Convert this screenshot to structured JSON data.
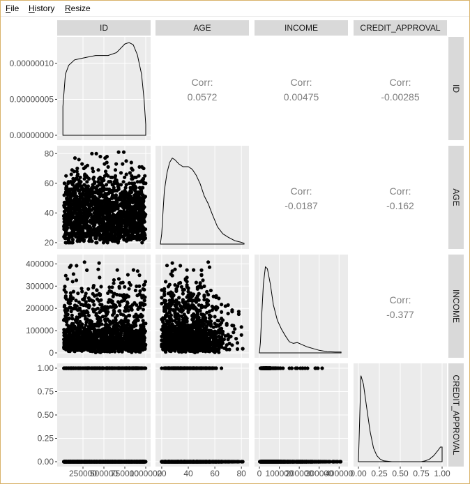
{
  "menu": {
    "file_underline": "F",
    "file_rest": "ile",
    "history_underline": "H",
    "history_rest": "istory",
    "resize_underline": "R",
    "resize_rest": "esize"
  },
  "colors": {
    "panel_bg": "#ebebeb",
    "strip_bg": "#d9d9d9",
    "grid": "#ffffff",
    "points": "#000000",
    "corr_text": "#7f7f7f",
    "axis_text": "#4d4d4d"
  },
  "chart_data": {
    "type": "scatter",
    "subtype": "pairs-matrix",
    "variables": [
      "ID",
      "AGE",
      "INCOME",
      "CREDIT_APPROVAL"
    ],
    "correlations": [
      {
        "row": "ID",
        "col": "AGE",
        "label": "Corr:",
        "value": "0.0572"
      },
      {
        "row": "ID",
        "col": "INCOME",
        "label": "Corr:",
        "value": "0.00475"
      },
      {
        "row": "ID",
        "col": "CREDIT_APPROVAL",
        "label": "Corr:",
        "value": "-0.00285"
      },
      {
        "row": "AGE",
        "col": "INCOME",
        "label": "Corr:",
        "value": "-0.0187"
      },
      {
        "row": "AGE",
        "col": "CREDIT_APPROVAL",
        "label": "Corr:",
        "value": "-0.162"
      },
      {
        "row": "INCOME",
        "col": "CREDIT_APPROVAL",
        "label": "Corr:",
        "value": "-0.377"
      }
    ],
    "ranges": {
      "ID": [
        0,
        1000000
      ],
      "AGE": [
        19,
        82
      ],
      "INCOME": [
        0,
        420000
      ],
      "CREDIT_APPROVAL": [
        0,
        1
      ]
    },
    "density_ylim": [
      0,
      1.3e-07
    ],
    "y_tick_labels": {
      "ID": [
        "0.00000000",
        "0.00000005",
        "0.00000010"
      ],
      "AGE": [
        "20",
        "40",
        "60",
        "80"
      ],
      "INCOME": [
        "0",
        "100000",
        "200000",
        "300000",
        "400000"
      ],
      "CREDIT_APPROVAL": [
        "0.00",
        "0.25",
        "0.50",
        "0.75",
        "1.00"
      ]
    },
    "x_tick_labels": {
      "ID": [
        "250000",
        "500000",
        "750000",
        "1000000"
      ],
      "AGE": [
        "20",
        "40",
        "60",
        "80"
      ],
      "INCOME": [
        "0",
        "100000",
        "200000",
        "300000",
        "400000"
      ],
      "CREDIT_APPROVAL": [
        "0.00",
        "0.25",
        "0.50",
        "0.75",
        "1.00"
      ]
    },
    "densities": {
      "ID": {
        "x": [
          10000,
          40000,
          80000,
          150000,
          250000,
          400000,
          550000,
          650000,
          700000,
          750000,
          800000,
          850000,
          900000,
          950000,
          980000,
          1000000
        ],
        "y": [
          4e-08,
          8.5e-08,
          9.75e-08,
          1.05e-07,
          1.075e-07,
          1.11e-07,
          1.11e-07,
          1.15e-07,
          1.21e-07,
          1.27e-07,
          1.29e-07,
          1.26e-07,
          1.12e-07,
          8.5e-08,
          5e-08,
          1.5e-08
        ]
      },
      "AGE": {
        "x": [
          19,
          20,
          21,
          22,
          24,
          26,
          28,
          30,
          33,
          36,
          40,
          43,
          46,
          49,
          52,
          55,
          58,
          62,
          66,
          70,
          75,
          80,
          82
        ],
        "y": [
          0.0,
          0.12,
          0.38,
          0.62,
          0.83,
          0.95,
          1.0,
          0.98,
          0.93,
          0.9,
          0.9,
          0.87,
          0.8,
          0.7,
          0.56,
          0.47,
          0.35,
          0.2,
          0.12,
          0.08,
          0.04,
          0.02,
          0.01
        ]
      },
      "INCOME": {
        "x": [
          0,
          5000,
          12000,
          20000,
          30000,
          40000,
          55000,
          70000,
          90000,
          110000,
          130000,
          150000,
          170000,
          190000,
          210000,
          240000,
          270000,
          300000,
          340000,
          380000,
          410000
        ],
        "y": [
          0.0,
          0.12,
          0.45,
          0.8,
          1.0,
          0.98,
          0.8,
          0.56,
          0.38,
          0.28,
          0.2,
          0.13,
          0.11,
          0.12,
          0.1,
          0.07,
          0.05,
          0.03,
          0.015,
          0.01,
          0.01
        ]
      },
      "CREDIT_APPROVAL": {
        "x": [
          0.0,
          0.03,
          0.06,
          0.1,
          0.14,
          0.18,
          0.22,
          0.26,
          0.3,
          0.4,
          0.5,
          0.6,
          0.7,
          0.75,
          0.8,
          0.85,
          0.9,
          0.95,
          0.98,
          1.0
        ],
        "y": [
          0.0,
          1.0,
          0.9,
          0.62,
          0.35,
          0.16,
          0.07,
          0.03,
          0.01,
          0.0,
          0.0,
          0.0,
          0.0,
          0.0,
          0.01,
          0.03,
          0.07,
          0.13,
          0.17,
          0.17
        ]
      }
    },
    "scatter_points_count": 1600,
    "distribution_notes": {
      "ID": "uniform",
      "AGE": "right-skewed, mode near 28",
      "INCOME": "right-skewed, mode near 30000",
      "CREDIT_APPROVAL": "binary 0 or 1"
    }
  }
}
